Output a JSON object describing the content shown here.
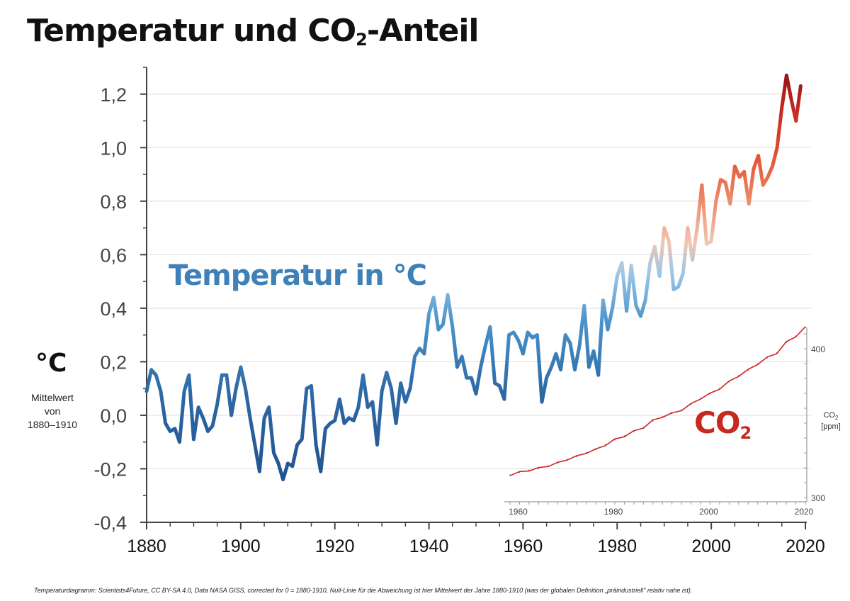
{
  "title": {
    "main": "Temperatur und CO",
    "sub": "2",
    "tail": "-Anteil"
  },
  "labels": {
    "temperature": "Temperatur in °C",
    "co2_main": "CO",
    "co2_sub": "2",
    "unit": "°C",
    "baseline_note_1": "Mittelwert",
    "baseline_note_2": "von",
    "baseline_note_3": "1880–1910",
    "co2_axis_main": "CO",
    "co2_axis_sub": "2",
    "co2_axis_unit": "[ppm]"
  },
  "source_note": "Temperaturdiagramm: Scientists4Future, CC BY-SA 4.0, Data NASA GISS, corrected for 0 = 1880-1910, Null-Linie für die Abweichung ist hier Mittelwert der Jahre 1880-1910 (was der globalen Definition „präindustriell\" relativ nahe ist).",
  "colors": {
    "cold": "#1f4e8c",
    "mid_blue": "#4b95cc",
    "light": "#f2c6b4",
    "warm": "#e0502c",
    "hot": "#8c1015",
    "co2_line": "#c8282a",
    "grid": "#dddddd",
    "axis": "#444444"
  },
  "chart_data": [
    {
      "type": "line",
      "name": "temperature",
      "xlim": [
        1880,
        2020
      ],
      "ylim": [
        -0.4,
        1.3
      ],
      "x_ticks": [
        1880,
        1900,
        1920,
        1940,
        1960,
        1980,
        2000,
        2020
      ],
      "x_tick_labels": [
        "1880",
        "1900",
        "1920",
        "1940",
        "1960",
        "1980",
        "2000",
        "2020"
      ],
      "y_ticks": [
        -0.4,
        -0.2,
        0.0,
        0.2,
        0.4,
        0.6,
        0.8,
        1.0,
        1.2
      ],
      "y_tick_labels": [
        "-0,4",
        "-0,2",
        "0,0",
        "0,2",
        "0,4",
        "0,6",
        "0,8",
        "1,0",
        "1,2"
      ],
      "grid": true,
      "x": [
        1880,
        1881,
        1882,
        1883,
        1884,
        1885,
        1886,
        1887,
        1888,
        1889,
        1890,
        1891,
        1892,
        1893,
        1894,
        1895,
        1896,
        1897,
        1898,
        1899,
        1900,
        1901,
        1902,
        1903,
        1904,
        1905,
        1906,
        1907,
        1908,
        1909,
        1910,
        1911,
        1912,
        1913,
        1914,
        1915,
        1916,
        1917,
        1918,
        1919,
        1920,
        1921,
        1922,
        1923,
        1924,
        1925,
        1926,
        1927,
        1928,
        1929,
        1930,
        1931,
        1932,
        1933,
        1934,
        1935,
        1936,
        1937,
        1938,
        1939,
        1940,
        1941,
        1942,
        1943,
        1944,
        1945,
        1946,
        1947,
        1948,
        1949,
        1950,
        1951,
        1952,
        1953,
        1954,
        1955,
        1956,
        1957,
        1958,
        1959,
        1960,
        1961,
        1962,
        1963,
        1964,
        1965,
        1966,
        1967,
        1968,
        1969,
        1970,
        1971,
        1972,
        1973,
        1974,
        1975,
        1976,
        1977,
        1978,
        1979,
        1980,
        1981,
        1982,
        1983,
        1984,
        1985,
        1986,
        1987,
        1988,
        1989,
        1990,
        1991,
        1992,
        1993,
        1994,
        1995,
        1996,
        1997,
        1998,
        1999,
        2000,
        2001,
        2002,
        2003,
        2004,
        2005,
        2006,
        2007,
        2008,
        2009,
        2010,
        2011,
        2012,
        2013,
        2014,
        2015,
        2016,
        2017,
        2018,
        2019
      ],
      "y": [
        0.09,
        0.17,
        0.15,
        0.09,
        -0.03,
        -0.06,
        -0.05,
        -0.1,
        0.09,
        0.15,
        -0.09,
        0.03,
        -0.01,
        -0.06,
        -0.04,
        0.04,
        0.15,
        0.15,
        0.0,
        0.1,
        0.18,
        0.1,
        -0.01,
        -0.11,
        -0.21,
        -0.01,
        0.03,
        -0.14,
        -0.18,
        -0.24,
        -0.18,
        -0.19,
        -0.11,
        -0.09,
        0.1,
        0.11,
        -0.11,
        -0.21,
        -0.05,
        -0.03,
        -0.02,
        0.06,
        -0.03,
        -0.01,
        -0.02,
        0.03,
        0.15,
        0.03,
        0.05,
        -0.11,
        0.09,
        0.16,
        0.1,
        -0.03,
        0.12,
        0.05,
        0.1,
        0.22,
        0.25,
        0.23,
        0.38,
        0.44,
        0.32,
        0.34,
        0.45,
        0.33,
        0.18,
        0.22,
        0.14,
        0.14,
        0.08,
        0.18,
        0.26,
        0.33,
        0.12,
        0.11,
        0.06,
        0.3,
        0.31,
        0.28,
        0.23,
        0.31,
        0.29,
        0.3,
        0.05,
        0.14,
        0.18,
        0.23,
        0.17,
        0.3,
        0.27,
        0.17,
        0.26,
        0.41,
        0.18,
        0.24,
        0.15,
        0.43,
        0.32,
        0.4,
        0.52,
        0.57,
        0.39,
        0.56,
        0.41,
        0.37,
        0.43,
        0.57,
        0.63,
        0.52,
        0.7,
        0.65,
        0.47,
        0.48,
        0.53,
        0.7,
        0.58,
        0.7,
        0.86,
        0.64,
        0.65,
        0.8,
        0.88,
        0.87,
        0.79,
        0.93,
        0.89,
        0.91,
        0.79,
        0.92,
        0.97,
        0.86,
        0.89,
        0.93,
        1.0,
        1.15,
        1.27,
        1.18,
        1.1,
        1.23
      ]
    },
    {
      "type": "line",
      "name": "co2",
      "xlim": [
        1958,
        2020
      ],
      "ylim": [
        300,
        420
      ],
      "x_ticks": [
        1960,
        1980,
        2000,
        2020
      ],
      "x_tick_labels": [
        "1960",
        "1980",
        "2000",
        "2020"
      ],
      "y_ticks": [
        300,
        400
      ],
      "y_tick_labels": [
        "300",
        "400"
      ],
      "x": [
        1958,
        1960,
        1962,
        1964,
        1966,
        1968,
        1970,
        1972,
        1974,
        1976,
        1978,
        1980,
        1982,
        1984,
        1986,
        1988,
        1990,
        1992,
        1994,
        1996,
        1998,
        2000,
        2002,
        2004,
        2006,
        2008,
        2010,
        2012,
        2014,
        2016,
        2018,
        2020
      ],
      "y": [
        315.2,
        316.9,
        318.4,
        319.6,
        321.4,
        323.1,
        325.7,
        327.5,
        330.2,
        332.1,
        335.4,
        338.8,
        341.4,
        344.4,
        347.2,
        351.6,
        354.4,
        356.4,
        358.9,
        362.6,
        366.7,
        369.6,
        373.3,
        377.7,
        381.9,
        385.6,
        389.9,
        393.9,
        397.2,
        404.2,
        408.5,
        414.2
      ]
    }
  ]
}
